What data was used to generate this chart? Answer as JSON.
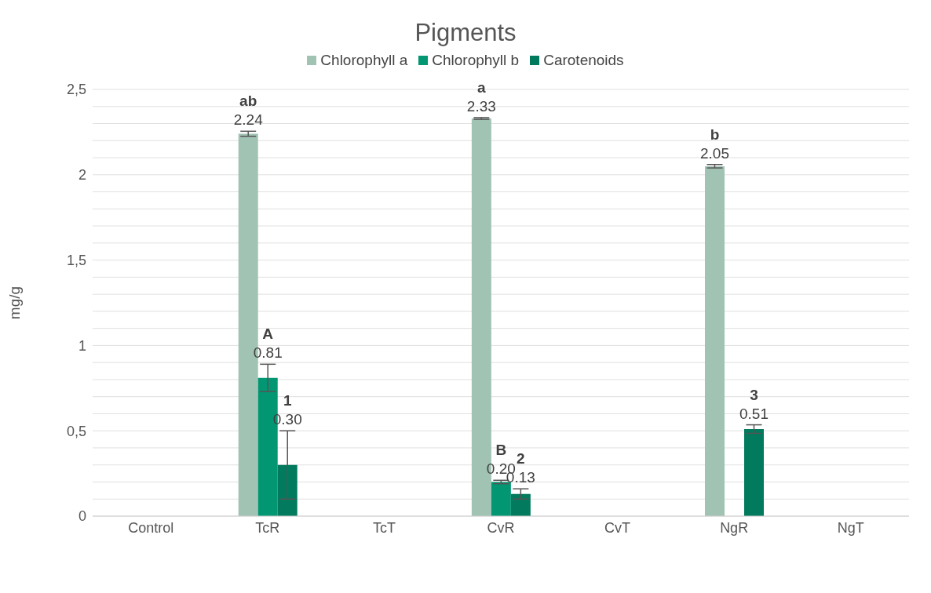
{
  "chart_data": {
    "type": "bar",
    "title": "Pigments",
    "ylabel": "mg/g",
    "categories": [
      "Control",
      "TcR",
      "TcT",
      "CvR",
      "CvT",
      "NgR",
      "NgT"
    ],
    "series": [
      {
        "name": "Chlorophyll a",
        "color": "#a1c3b4",
        "values": [
          null,
          2.24,
          null,
          2.33,
          null,
          2.05,
          null
        ],
        "errors": [
          null,
          0.015,
          null,
          0.005,
          null,
          0.01,
          null
        ],
        "value_labels": [
          null,
          "2.24",
          null,
          "2.33",
          null,
          "2.05",
          null
        ]
      },
      {
        "name": "Chlorophyll b",
        "color": "#029673",
        "values": [
          null,
          0.81,
          null,
          0.2,
          null,
          0,
          null
        ],
        "errors": [
          null,
          0.08,
          null,
          0.01,
          null,
          null,
          null
        ],
        "value_labels": [
          null,
          "0.81",
          null,
          "0.20",
          null,
          null,
          null
        ]
      },
      {
        "name": "Carotenoids",
        "color": "#017a5e",
        "values": [
          null,
          0.3,
          null,
          0.13,
          null,
          0.51,
          null
        ],
        "errors": [
          null,
          0.2,
          null,
          0.03,
          null,
          0.025,
          null
        ],
        "value_labels": [
          null,
          "0.30",
          null,
          "0.13",
          null,
          "0.51",
          null
        ]
      }
    ],
    "ylim": [
      0,
      2.5
    ],
    "yticks": [
      {
        "value": 0,
        "label": "0"
      },
      {
        "value": 0.1,
        "label": null
      },
      {
        "value": 0.2,
        "label": null
      },
      {
        "value": 0.3,
        "label": null
      },
      {
        "value": 0.4,
        "label": null
      },
      {
        "value": 0.5,
        "label": "0,5"
      },
      {
        "value": 0.6,
        "label": null
      },
      {
        "value": 0.7,
        "label": null
      },
      {
        "value": 0.8,
        "label": null
      },
      {
        "value": 0.9,
        "label": null
      },
      {
        "value": 1,
        "label": "1"
      },
      {
        "value": 1.1,
        "label": null
      },
      {
        "value": 1.2,
        "label": null
      },
      {
        "value": 1.3,
        "label": null
      },
      {
        "value": 1.4,
        "label": null
      },
      {
        "value": 1.5,
        "label": "1,5"
      },
      {
        "value": 1.6,
        "label": null
      },
      {
        "value": 1.7,
        "label": null
      },
      {
        "value": 1.8,
        "label": null
      },
      {
        "value": 1.9,
        "label": null
      },
      {
        "value": 2,
        "label": "2"
      },
      {
        "value": 2.1,
        "label": null
      },
      {
        "value": 2.2,
        "label": null
      },
      {
        "value": 2.3,
        "label": null
      },
      {
        "value": 2.4,
        "label": null
      },
      {
        "value": 2.5,
        "label": "2,5"
      }
    ],
    "grid": "y",
    "legend": "top",
    "annotations": [
      "ab",
      "A",
      "1",
      "a",
      "B",
      "2",
      "b",
      "3"
    ]
  }
}
